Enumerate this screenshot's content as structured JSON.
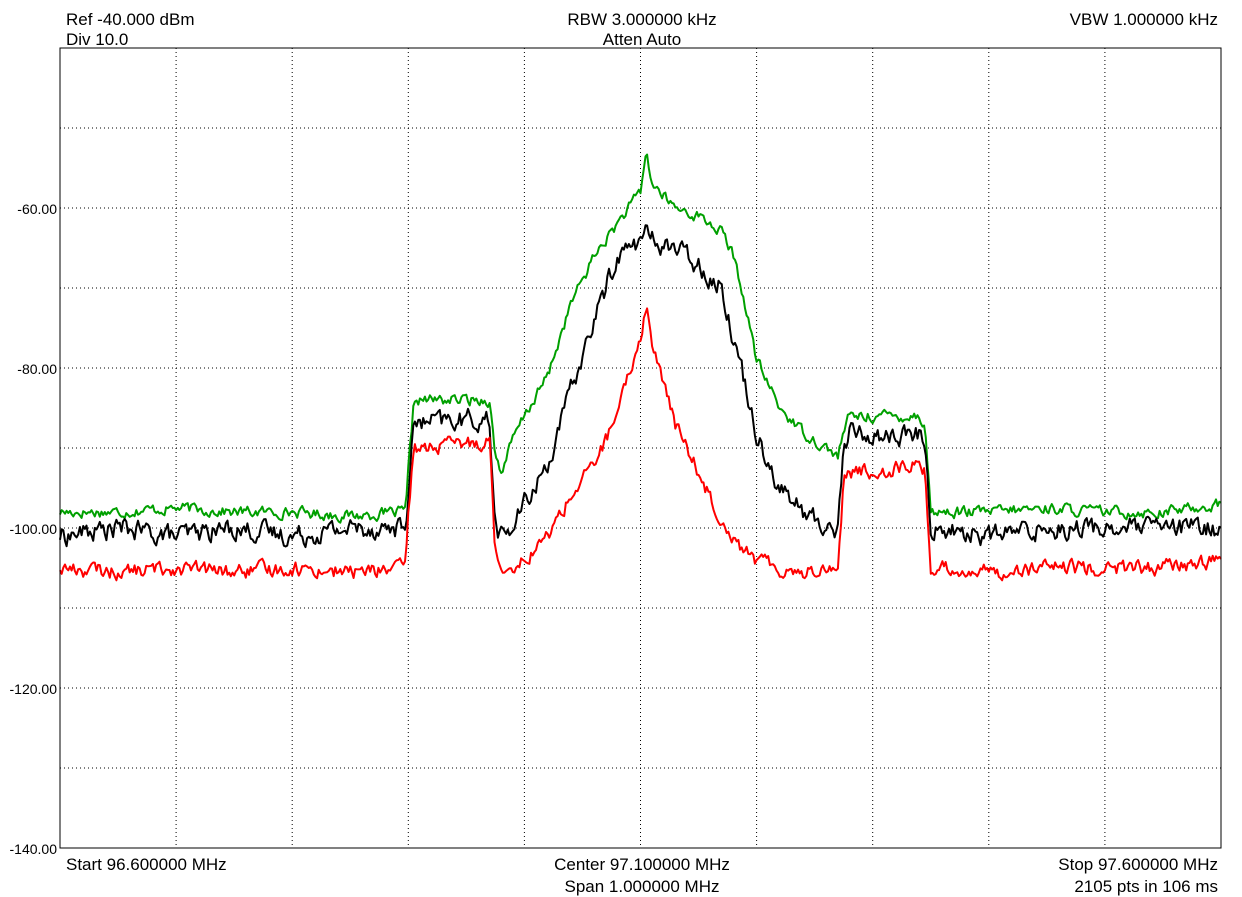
{
  "header": {
    "ref": "Ref -40.000 dBm",
    "div": "Div 10.0",
    "rbw": "RBW 3.000000 kHz",
    "atten": "Atten Auto",
    "vbw": "VBW 1.000000 kHz"
  },
  "footer": {
    "start": "Start 96.600000 MHz",
    "center": "Center 97.100000 MHz",
    "span": "Span 1.000000 MHz",
    "stop": "Stop 97.600000 MHz",
    "points": "2105 pts in 106 ms"
  },
  "chart_data": {
    "type": "line",
    "title": "",
    "xlabel": "",
    "ylabel": "",
    "xlim": [
      96.6,
      97.6
    ],
    "ylim": [
      -140,
      -40
    ],
    "grid": true,
    "yticks": [
      -60,
      -80,
      -100,
      -120,
      -140
    ],
    "ytick_labels": [
      "-60.00",
      "-80.00",
      "-100.00",
      "-120.00",
      "-140.00"
    ],
    "x_divisions": 10,
    "y_divisions": 10,
    "colors": {
      "green": "#00a000",
      "black": "#000000",
      "red": "#ff0000",
      "grid": "#000000",
      "frame": "#000000"
    },
    "series": [
      {
        "color": "#00a000",
        "x": [
          96.6,
          96.65,
          96.7,
          96.75,
          96.8,
          96.85,
          96.898,
          96.9,
          96.905,
          96.95,
          96.97,
          96.975,
          96.98,
          96.99,
          97.0,
          97.02,
          97.04,
          97.06,
          97.08,
          97.1,
          97.105,
          97.11,
          97.13,
          97.15,
          97.17,
          97.18,
          97.19,
          97.2,
          97.22,
          97.24,
          97.26,
          97.27,
          97.275,
          97.28,
          97.3,
          97.34,
          97.345,
          97.35,
          97.4,
          97.45,
          97.5,
          97.55,
          97.6
        ],
        "y": [
          -98,
          -98,
          -97.5,
          -98,
          -98,
          -98.5,
          -98,
          -93,
          -84,
          -84,
          -84,
          -91,
          -93,
          -89,
          -86,
          -81,
          -72,
          -66,
          -62,
          -58,
          -53,
          -57,
          -60,
          -61,
          -63,
          -66,
          -72,
          -79,
          -85,
          -88,
          -90,
          -91,
          -88,
          -86,
          -86,
          -86,
          -87,
          -98,
          -98,
          -97.5,
          -98,
          -98,
          -97
        ]
      },
      {
        "color": "#000000",
        "x": [
          96.6,
          96.65,
          96.7,
          96.75,
          96.8,
          96.85,
          96.898,
          96.9,
          96.905,
          96.95,
          96.97,
          96.975,
          96.98,
          96.99,
          97.0,
          97.02,
          97.04,
          97.06,
          97.08,
          97.1,
          97.105,
          97.11,
          97.13,
          97.15,
          97.17,
          97.18,
          97.19,
          97.2,
          97.22,
          97.24,
          97.26,
          97.27,
          97.275,
          97.28,
          97.3,
          97.34,
          97.345,
          97.35,
          97.4,
          97.45,
          97.5,
          97.55,
          97.6
        ],
        "y": [
          -101,
          -100,
          -101,
          -100,
          -101,
          -100,
          -100,
          -95,
          -87,
          -86.5,
          -86.5,
          -100,
          -101,
          -100,
          -97,
          -92,
          -83,
          -74,
          -66,
          -64,
          -63,
          -64,
          -65,
          -67,
          -70,
          -76,
          -82,
          -88,
          -95,
          -98,
          -100,
          -100,
          -90,
          -88,
          -88.5,
          -88.5,
          -89,
          -100,
          -101,
          -100,
          -100,
          -100,
          -100
        ]
      },
      {
        "color": "#ff0000",
        "x": [
          96.6,
          96.65,
          96.7,
          96.75,
          96.8,
          96.85,
          96.898,
          96.9,
          96.905,
          96.95,
          96.97,
          96.975,
          96.98,
          96.99,
          97.0,
          97.02,
          97.04,
          97.06,
          97.08,
          97.1,
          97.105,
          97.11,
          97.13,
          97.15,
          97.17,
          97.18,
          97.19,
          97.2,
          97.22,
          97.24,
          97.26,
          97.27,
          97.275,
          97.28,
          97.3,
          97.34,
          97.345,
          97.35,
          97.4,
          97.45,
          97.5,
          97.55,
          97.6
        ],
        "y": [
          -105,
          -105.5,
          -105,
          -105.5,
          -105,
          -105.5,
          -105,
          -98,
          -90,
          -89.5,
          -89,
          -103,
          -105,
          -104.5,
          -104,
          -101,
          -96,
          -92,
          -86,
          -76,
          -72,
          -77,
          -87,
          -93,
          -99,
          -101,
          -103,
          -104,
          -105,
          -105.5,
          -105,
          -105,
          -94,
          -93,
          -93,
          -92,
          -93,
          -105,
          -105.5,
          -105,
          -105,
          -105,
          -104
        ]
      }
    ]
  }
}
